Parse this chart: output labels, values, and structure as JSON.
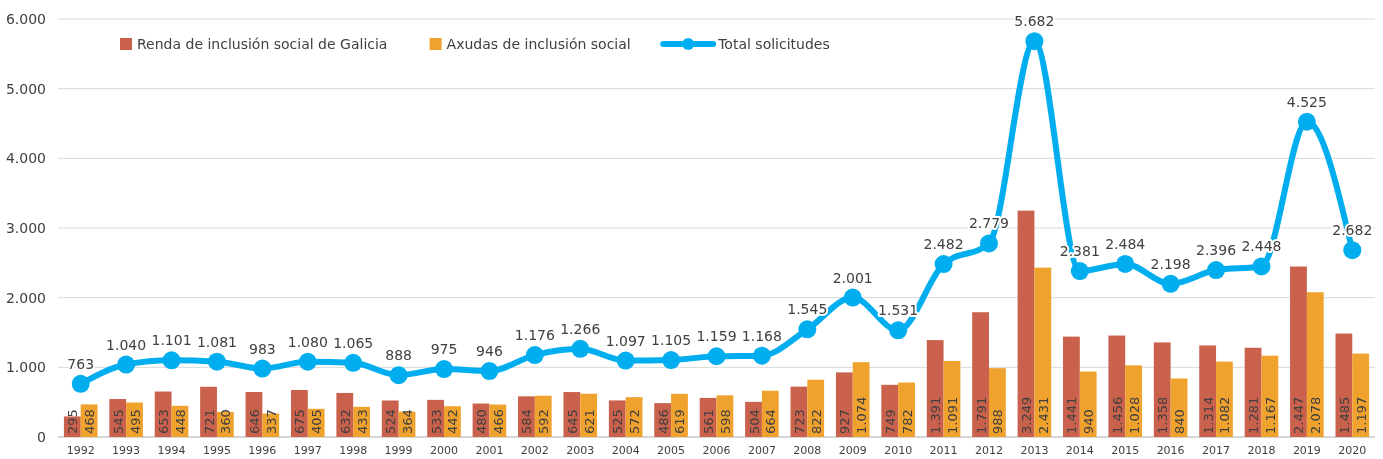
{
  "chart_data": {
    "type": "bar",
    "categories": [
      "1992",
      "1993",
      "1994",
      "1995",
      "1996",
      "1997",
      "1998",
      "1999",
      "2000",
      "2001",
      "2002",
      "2003",
      "2004",
      "2005",
      "2006",
      "2007",
      "2008",
      "2009",
      "2010",
      "2011",
      "2012",
      "2013",
      "2014",
      "2015",
      "2016",
      "2017",
      "2018",
      "2019",
      "2020"
    ],
    "series": [
      {
        "name": "Renda de inclusión social de Galicia",
        "color": "#c9614c",
        "values": [
          295,
          545,
          653,
          721,
          646,
          675,
          632,
          524,
          533,
          480,
          584,
          645,
          525,
          486,
          561,
          504,
          723,
          927,
          749,
          1391,
          1791,
          3249,
          1441,
          1456,
          1358,
          1314,
          1281,
          2447,
          1485
        ],
        "value_labels": [
          "295",
          "545",
          "653",
          "721",
          "646",
          "675",
          "632",
          "524",
          "533",
          "480",
          "584",
          "645",
          "525",
          "486",
          "561",
          "504",
          "723",
          "927",
          "749",
          "1.391",
          "1.791",
          "3.249",
          "1.441",
          "1.456",
          "1.358",
          "1.314",
          "1.281",
          "2.447",
          "1.485"
        ]
      },
      {
        "name": "Axudas de inclusión social",
        "color": "#f0a22e",
        "values": [
          468,
          495,
          448,
          360,
          337,
          405,
          433,
          364,
          442,
          466,
          592,
          621,
          572,
          619,
          598,
          664,
          822,
          1074,
          782,
          1091,
          988,
          2431,
          940,
          1028,
          840,
          1082,
          1167,
          2078,
          1197
        ],
        "value_labels": [
          "468",
          "495",
          "448",
          "360",
          "337",
          "405",
          "433",
          "364",
          "442",
          "466",
          "592",
          "621",
          "572",
          "619",
          "598",
          "664",
          "822",
          "1.074",
          "782",
          "1.091",
          "988",
          "2.431",
          "940",
          "1.028",
          "840",
          "1.082",
          "1.167",
          "2.078",
          "1.197"
        ]
      },
      {
        "name": "Total solicitudes",
        "type": "line",
        "color": "#00aeef",
        "marker": "circle",
        "values": [
          763,
          1040,
          1101,
          1081,
          983,
          1080,
          1065,
          888,
          975,
          946,
          1176,
          1266,
          1097,
          1105,
          1159,
          1168,
          1545,
          2001,
          1531,
          2482,
          2779,
          5682,
          2381,
          2484,
          2198,
          2396,
          2448,
          4525,
          2682
        ],
        "value_labels": [
          "763",
          "1.040",
          "1.101",
          "1.081",
          "983",
          "1.080",
          "1.065",
          "888",
          "975",
          "946",
          "1.176",
          "1.266",
          "1.097",
          "1.105",
          "1.159",
          "1.168",
          "1.545",
          "2.001",
          "1.531",
          "2.482",
          "2.779",
          "5.682",
          "2.381",
          "2.484",
          "2.198",
          "2.396",
          "2.448",
          "4.525",
          "2.682"
        ]
      }
    ],
    "ylim": [
      0,
      6000
    ],
    "yticks": [
      {
        "value": 0,
        "label": "0"
      },
      {
        "value": 1000,
        "label": "1.000"
      },
      {
        "value": 2000,
        "label": "2.000"
      },
      {
        "value": 3000,
        "label": "3.000"
      },
      {
        "value": 4000,
        "label": "4.000"
      },
      {
        "value": 5000,
        "label": "5.000"
      },
      {
        "value": 6000,
        "label": "6.000"
      }
    ],
    "grid": "y",
    "legend": "top left"
  }
}
